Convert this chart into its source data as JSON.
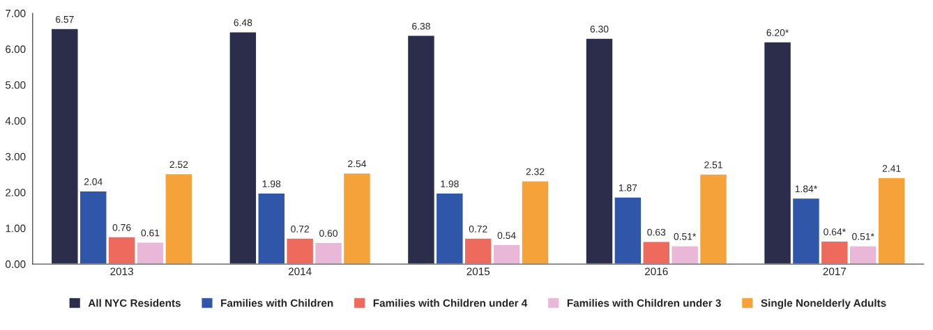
{
  "chart_data": {
    "type": "bar",
    "categories": [
      "2013",
      "2014",
      "2015",
      "2016",
      "2017"
    ],
    "series": [
      {
        "name": "All NYC Residents",
        "color": "#2b2d4b",
        "values": [
          6.57,
          6.48,
          6.38,
          6.3,
          6.2
        ],
        "value_labels": [
          "6.57",
          "6.48",
          "6.38",
          "6.30",
          "6.20*"
        ]
      },
      {
        "name": "Families with Children",
        "color": "#2f56a8",
        "values": [
          2.04,
          1.98,
          1.98,
          1.87,
          1.84
        ],
        "value_labels": [
          "2.04",
          "1.98",
          "1.98",
          "1.87",
          "1.84*"
        ]
      },
      {
        "name": "Families with Children under 4",
        "color": "#ee6a5c",
        "values": [
          0.76,
          0.72,
          0.72,
          0.63,
          0.64
        ],
        "value_labels": [
          "0.76",
          "0.72",
          "0.72",
          "0.63",
          "0.64*"
        ]
      },
      {
        "name": "Families with Children under 3",
        "color": "#e9b8d8",
        "values": [
          0.61,
          0.6,
          0.54,
          0.51,
          0.51
        ],
        "value_labels": [
          "0.61",
          "0.60",
          "0.54",
          "0.51*",
          "0.51*"
        ]
      },
      {
        "name": "Single Nonelderly Adults",
        "color": "#f6a23a",
        "values": [
          2.52,
          2.54,
          2.32,
          2.51,
          2.41
        ],
        "value_labels": [
          "2.52",
          "2.54",
          "2.32",
          "2.51",
          "2.41"
        ]
      }
    ],
    "ylim": [
      0,
      7
    ],
    "yticks": [
      {
        "value": 0,
        "label": "0.00"
      },
      {
        "value": 1,
        "label": "1.00"
      },
      {
        "value": 2,
        "label": "2.00"
      },
      {
        "value": 3,
        "label": "3.00"
      },
      {
        "value": 4,
        "label": "4.00"
      },
      {
        "value": 5,
        "label": "5.00"
      },
      {
        "value": 6,
        "label": "6.00"
      },
      {
        "value": 7,
        "label": "7.00"
      }
    ],
    "legend": "bottom",
    "grid": false
  }
}
